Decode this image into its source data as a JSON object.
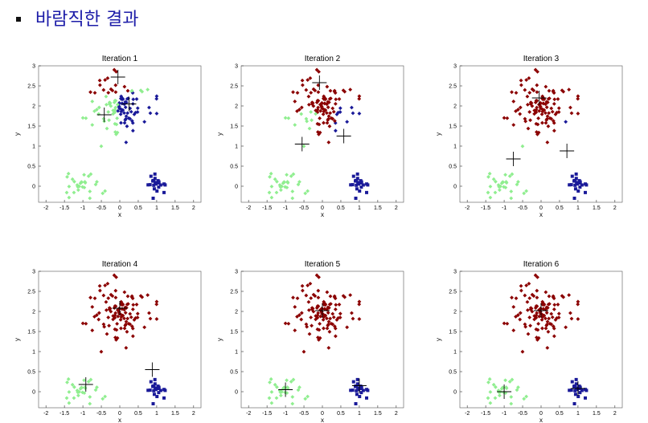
{
  "slide": {
    "heading": "바람직한 결과"
  },
  "colors": {
    "cluster_a": "#8b0000",
    "cluster_b": "#1a1a99",
    "cluster_c": "#90ee90",
    "centroid": "#000000",
    "heading": "#1c1ca8"
  },
  "chart_data": [
    {
      "type": "scatter",
      "title": "Iteration 1",
      "xlabel": "x",
      "ylabel": "y",
      "xlim": [
        -2.2,
        2.2
      ],
      "ylim": [
        -0.4,
        3
      ],
      "xticks": [
        "-2",
        "-1.5",
        "-1",
        "-0.5",
        "0",
        "0.5",
        "1",
        "1.5",
        "2"
      ],
      "yticks": [
        "0",
        "0.5",
        "1",
        "1.5",
        "2",
        "2.5",
        "3"
      ],
      "grid": false,
      "series": [
        {
          "marker": "diamond",
          "color": "#8b0000"
        },
        {
          "marker": "diamond",
          "color": "#1a1a99"
        },
        {
          "marker": "diamond",
          "color": "#90ee90"
        },
        {
          "marker": "square",
          "color": "#1a1a99"
        },
        {
          "marker": "diamond",
          "color": "#90ee90"
        }
      ],
      "centroids": [
        [
          -0.05,
          2.72
        ],
        [
          0.25,
          2.05
        ],
        [
          -0.42,
          1.78
        ]
      ]
    },
    {
      "type": "scatter",
      "title": "Iteration 2",
      "xlabel": "x",
      "ylabel": "y",
      "xlim": [
        -2.2,
        2.2
      ],
      "ylim": [
        -0.4,
        3
      ],
      "xticks": [
        "-2",
        "-1.5",
        "-1",
        "-0.5",
        "0",
        "0.5",
        "1",
        "1.5",
        "2"
      ],
      "yticks": [
        "0",
        "0.5",
        "1",
        "1.5",
        "2",
        "2.5",
        "3"
      ],
      "grid": false,
      "series": [
        {
          "marker": "diamond",
          "color": "#8b0000"
        },
        {
          "marker": "diamond",
          "color": "#1a1a99"
        },
        {
          "marker": "diamond",
          "color": "#90ee90"
        },
        {
          "marker": "square",
          "color": "#1a1a99"
        },
        {
          "marker": "diamond",
          "color": "#90ee90"
        }
      ],
      "centroids": [
        [
          -0.08,
          2.58
        ],
        [
          0.58,
          1.25
        ],
        [
          -0.55,
          1.05
        ]
      ]
    },
    {
      "type": "scatter",
      "title": "Iteration 3",
      "xlabel": "x",
      "ylabel": "y",
      "xlim": [
        -2.2,
        2.2
      ],
      "ylim": [
        -0.4,
        3
      ],
      "xticks": [
        "-2",
        "-1.5",
        "-1",
        "-0.5",
        "0",
        "0.5",
        "1",
        "1.5",
        "2"
      ],
      "yticks": [
        "0",
        "0.5",
        "1",
        "1.5",
        "2",
        "2.5",
        "3"
      ],
      "grid": false,
      "series": [
        {
          "marker": "diamond",
          "color": "#8b0000"
        },
        {
          "marker": "diamond",
          "color": "#1a1a99"
        },
        {
          "marker": "diamond",
          "color": "#90ee90"
        },
        {
          "marker": "square",
          "color": "#1a1a99"
        },
        {
          "marker": "diamond",
          "color": "#90ee90"
        }
      ],
      "centroids": [
        [
          -0.05,
          2.2
        ],
        [
          0.7,
          0.88
        ],
        [
          -0.75,
          0.68
        ]
      ]
    },
    {
      "type": "scatter",
      "title": "Iteration 4",
      "xlabel": "x",
      "ylabel": "y",
      "xlim": [
        -2.2,
        2.2
      ],
      "ylim": [
        -0.4,
        3
      ],
      "xticks": [
        "-2",
        "-1.5",
        "-1",
        "-0.5",
        "0",
        "0.5",
        "1",
        "1.5",
        "2"
      ],
      "yticks": [
        "0",
        "0.5",
        "1",
        "1.5",
        "2",
        "2.5",
        "3"
      ],
      "grid": false,
      "series": [
        {
          "marker": "diamond",
          "color": "#8b0000"
        },
        {
          "marker": "diamond",
          "color": "#1a1a99"
        },
        {
          "marker": "diamond",
          "color": "#90ee90"
        },
        {
          "marker": "square",
          "color": "#1a1a99"
        },
        {
          "marker": "diamond",
          "color": "#90ee90"
        }
      ],
      "centroids": [
        [
          0.0,
          2.08
        ],
        [
          0.88,
          0.55
        ],
        [
          -0.92,
          0.18
        ]
      ]
    },
    {
      "type": "scatter",
      "title": "Iteration 5",
      "xlabel": "x",
      "ylabel": "y",
      "xlim": [
        -2.2,
        2.2
      ],
      "ylim": [
        -0.4,
        3
      ],
      "xticks": [
        "-2",
        "-1.5",
        "-1",
        "-0.5",
        "0",
        "0.5",
        "1",
        "1.5",
        "2"
      ],
      "yticks": [
        "0",
        "0.5",
        "1",
        "1.5",
        "2",
        "2.5",
        "3"
      ],
      "grid": false,
      "series": [
        {
          "marker": "diamond",
          "color": "#8b0000"
        },
        {
          "marker": "diamond",
          "color": "#1a1a99"
        },
        {
          "marker": "diamond",
          "color": "#90ee90"
        },
        {
          "marker": "square",
          "color": "#1a1a99"
        },
        {
          "marker": "diamond",
          "color": "#90ee90"
        }
      ],
      "centroids": [
        [
          0.0,
          2.02
        ],
        [
          1.0,
          0.15
        ],
        [
          -1.0,
          0.05
        ]
      ]
    },
    {
      "type": "scatter",
      "title": "Iteration 6",
      "xlabel": "x",
      "ylabel": "y",
      "xlim": [
        -2.2,
        2.2
      ],
      "ylim": [
        -0.4,
        3
      ],
      "xticks": [
        "-2",
        "-1.5",
        "-1",
        "-0.5",
        "0",
        "0.5",
        "1",
        "1.5",
        "2"
      ],
      "yticks": [
        "0",
        "0.5",
        "1",
        "1.5",
        "2",
        "2.5",
        "3"
      ],
      "grid": false,
      "series": [
        {
          "marker": "diamond",
          "color": "#8b0000"
        },
        {
          "marker": "diamond",
          "color": "#1a1a99"
        },
        {
          "marker": "diamond",
          "color": "#90ee90"
        },
        {
          "marker": "square",
          "color": "#1a1a99"
        },
        {
          "marker": "diamond",
          "color": "#90ee90"
        }
      ],
      "centroids": [
        [
          0.0,
          2.02
        ],
        [
          1.0,
          0.08
        ],
        [
          -1.0,
          0.0
        ]
      ]
    }
  ]
}
